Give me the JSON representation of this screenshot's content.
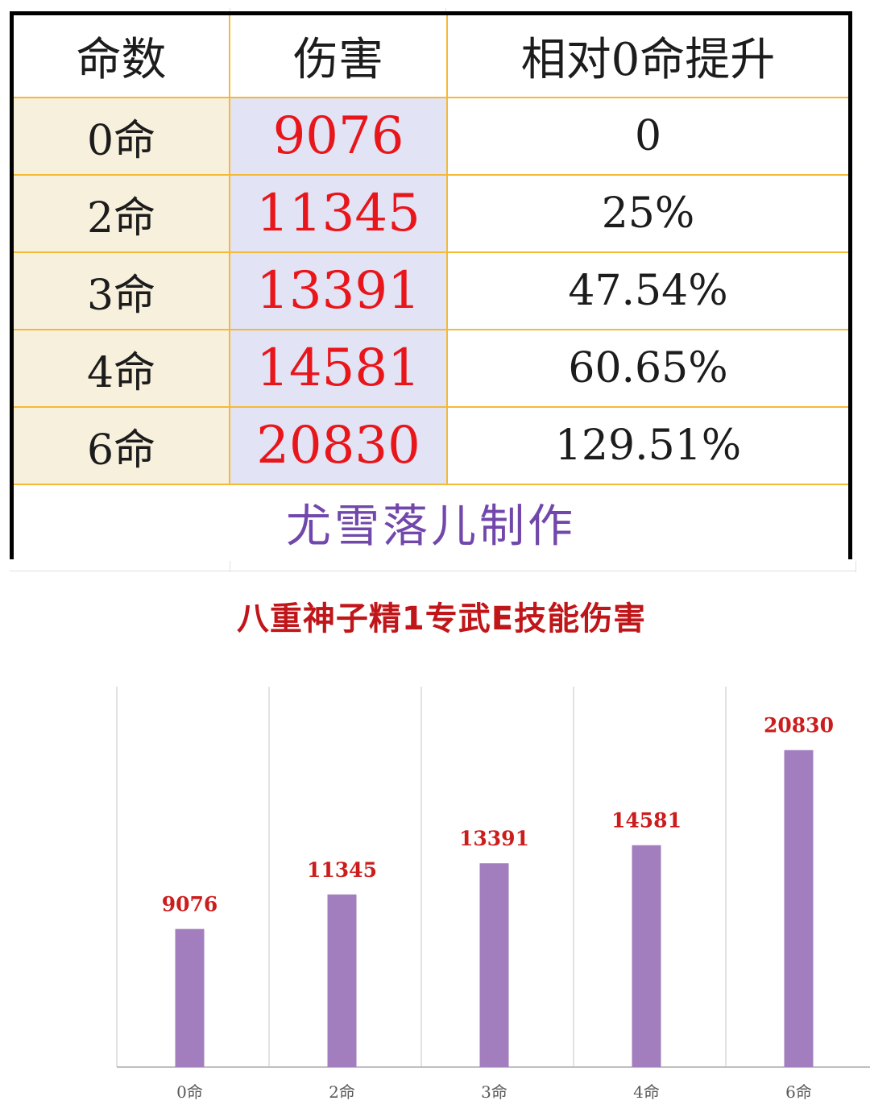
{
  "table": {
    "headers": [
      "命数",
      "伤害",
      "相对0命提升"
    ],
    "rows": [
      {
        "const": "0命",
        "damage": "9076",
        "increase": "0"
      },
      {
        "const": "2命",
        "damage": "11345",
        "increase": "25%"
      },
      {
        "const": "3命",
        "damage": "13391",
        "increase": "47.54%"
      },
      {
        "const": "4命",
        "damage": "14581",
        "increase": "60.65%"
      },
      {
        "const": "6命",
        "damage": "20830",
        "increase": "129.51%"
      }
    ],
    "footer": "尤雪落儿制作"
  },
  "colors": {
    "damage_text": "#e8161b",
    "footer_text": "#7147ab",
    "bar": "#a37ebe",
    "data_label": "#cc1c1c",
    "table_border": "#f5b935"
  },
  "chart_data": {
    "type": "bar",
    "title": "八重神子精1专武E技能伤害",
    "categories": [
      "0命",
      "2命",
      "3命",
      "4命",
      "6命"
    ],
    "values": [
      9076,
      11345,
      13391,
      14581,
      20830
    ],
    "xlabel": "",
    "ylabel": "",
    "ylim": [
      0,
      25000
    ],
    "grid": "vertical",
    "data_labels": true
  }
}
